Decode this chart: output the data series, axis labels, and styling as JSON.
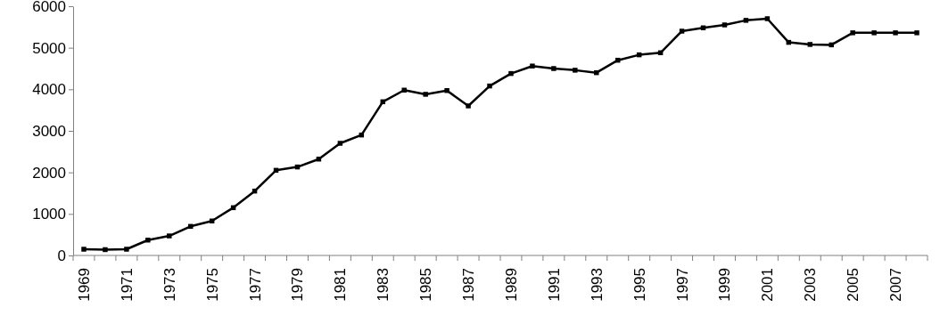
{
  "chart_data": {
    "type": "line",
    "categories": [
      "1969",
      null,
      "1971",
      null,
      "1973",
      null,
      "1975",
      null,
      "1977",
      null,
      "1979",
      null,
      "1981",
      null,
      "1983",
      null,
      "1985",
      null,
      "1987",
      null,
      "1989",
      null,
      "1991",
      null,
      "1993",
      null,
      "1995",
      null,
      "1997",
      null,
      "1999",
      null,
      "2001",
      null,
      "2003",
      null,
      "2005",
      null,
      "2007",
      null
    ],
    "series": [
      {
        "color": "#000000",
        "values": [
          150,
          140,
          150,
          370,
          470,
          700,
          830,
          1150,
          1550,
          2050,
          2130,
          2320,
          2700,
          2900,
          3700,
          3980,
          3880,
          3970,
          3600,
          4080,
          4380,
          4560,
          4500,
          4460,
          4400,
          4700,
          4830,
          4880,
          5400,
          5480,
          5550,
          5660,
          5700,
          5130,
          5080,
          5070,
          5360,
          5360,
          5360,
          5360
        ]
      }
    ],
    "ylim": [
      0,
      6000
    ],
    "yticks": [
      0,
      1000,
      2000,
      3000,
      4000,
      5000,
      6000
    ],
    "grid": false,
    "marker": "square",
    "line_style": "solid"
  }
}
